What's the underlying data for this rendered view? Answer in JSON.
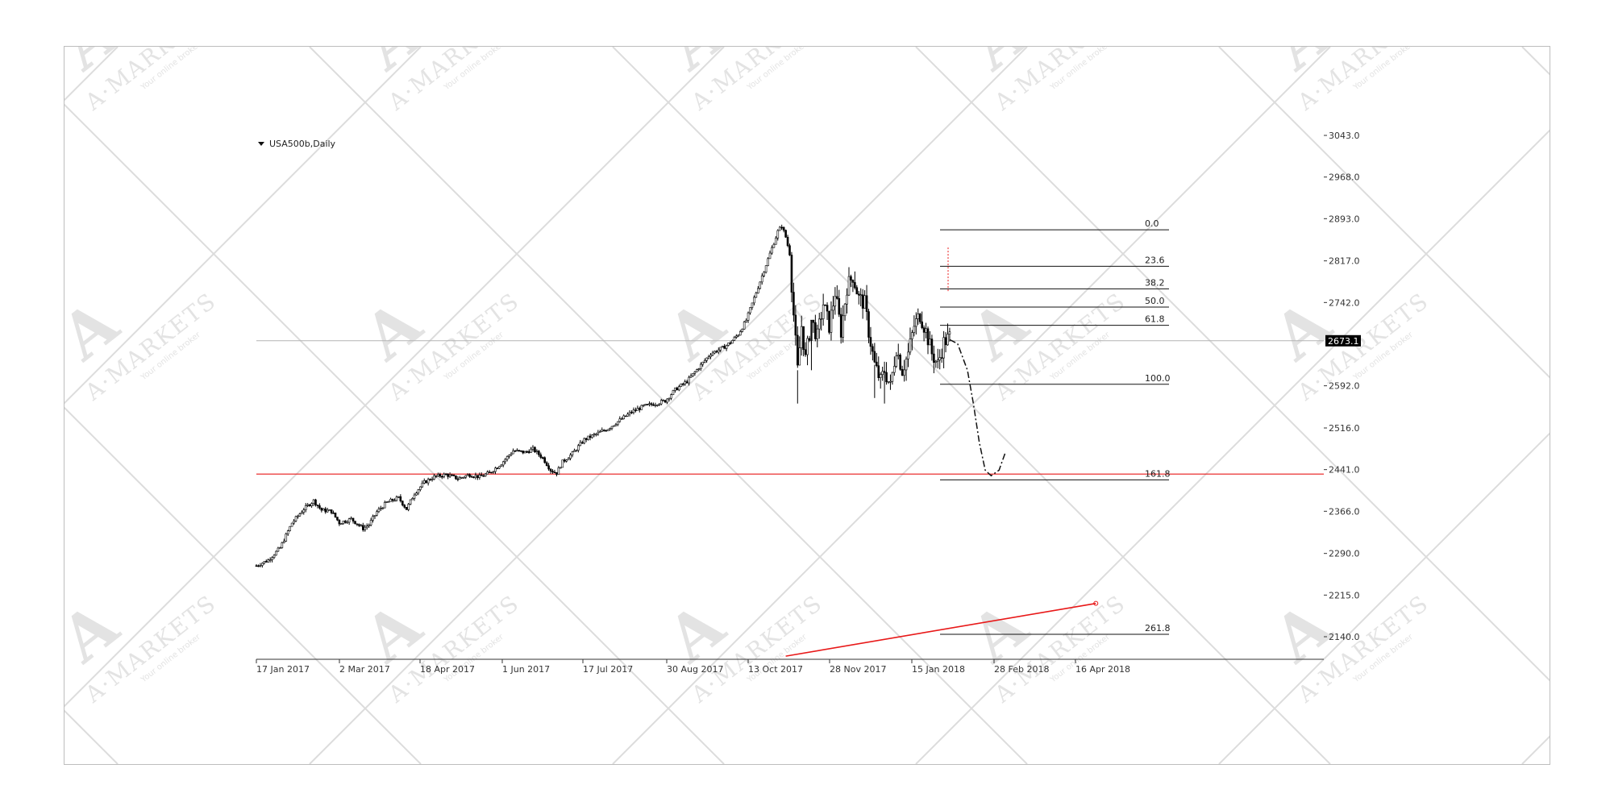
{
  "watermark": {
    "brand": "A·MARKETS",
    "tagline": "Your online broker",
    "logo": "A"
  },
  "chart_data": {
    "type": "candlestick",
    "title": "USA500b,Daily",
    "current_price": 2673.1,
    "ylim": [
      2105.0,
      3060.0
    ],
    "y_ticks": [
      "3043.0",
      "2968.0",
      "2893.0",
      "2817.0",
      "2742.0",
      "2673.1",
      "2592.0",
      "2516.0",
      "2441.0",
      "2366.0",
      "2290.0",
      "2215.0",
      "2140.0"
    ],
    "y_tick_values": [
      3043.0,
      2968.0,
      2893.0,
      2817.0,
      2742.0,
      2673.1,
      2592.0,
      2516.0,
      2441.0,
      2366.0,
      2290.0,
      2215.0,
      2140.0
    ],
    "x_ticks": [
      "17 Jan 2017",
      "2 Mar 2017",
      "18 Apr 2017",
      "1 Jun 2017",
      "17 Jul 2017",
      "30 Aug 2017",
      "13 Oct 2017",
      "28 Nov 2017",
      "15 Jan 2018",
      "28 Feb 2018",
      "16 Apr 2018"
    ],
    "price_path": [
      [
        0,
        2268
      ],
      [
        6,
        2278
      ],
      [
        12,
        2300
      ],
      [
        18,
        2345
      ],
      [
        24,
        2370
      ],
      [
        29,
        2385
      ],
      [
        33,
        2368
      ],
      [
        38,
        2366
      ],
      [
        42,
        2345
      ],
      [
        48,
        2352
      ],
      [
        54,
        2335
      ],
      [
        57,
        2342
      ],
      [
        61,
        2365
      ],
      [
        66,
        2382
      ],
      [
        72,
        2390
      ],
      [
        76,
        2370
      ],
      [
        80,
        2398
      ],
      [
        85,
        2418
      ],
      [
        90,
        2428
      ],
      [
        96,
        2432
      ],
      [
        102,
        2425
      ],
      [
        108,
        2432
      ],
      [
        113,
        2428
      ],
      [
        118,
        2435
      ],
      [
        124,
        2452
      ],
      [
        130,
        2475
      ],
      [
        136,
        2472
      ],
      [
        140,
        2478
      ],
      [
        145,
        2462
      ],
      [
        149,
        2440
      ],
      [
        152,
        2435
      ],
      [
        155,
        2455
      ],
      [
        160,
        2470
      ],
      [
        166,
        2495
      ],
      [
        172,
        2505
      ],
      [
        178,
        2515
      ],
      [
        184,
        2530
      ],
      [
        190,
        2545
      ],
      [
        196,
        2555
      ],
      [
        202,
        2560
      ],
      [
        207,
        2565
      ],
      [
        212,
        2585
      ],
      [
        218,
        2600
      ],
      [
        224,
        2625
      ],
      [
        230,
        2650
      ],
      [
        236,
        2660
      ],
      [
        240,
        2670
      ],
      [
        244,
        2685
      ],
      [
        248,
        2710
      ],
      [
        252,
        2750
      ],
      [
        256,
        2790
      ],
      [
        260,
        2830
      ],
      [
        264,
        2870
      ],
      [
        266,
        2880
      ],
      [
        268,
        2860
      ],
      [
        270,
        2830
      ],
      [
        272,
        2720
      ],
      [
        274,
        2620
      ],
      [
        276,
        2700
      ],
      [
        278,
        2640
      ],
      [
        281,
        2710
      ],
      [
        284,
        2680
      ],
      [
        287,
        2740
      ],
      [
        290,
        2700
      ],
      [
        293,
        2760
      ],
      [
        296,
        2690
      ],
      [
        299,
        2770
      ],
      [
        302,
        2790
      ],
      [
        305,
        2750
      ],
      [
        308,
        2740
      ],
      [
        310,
        2690
      ],
      [
        313,
        2630
      ],
      [
        316,
        2600
      ],
      [
        318,
        2620
      ],
      [
        321,
        2590
      ],
      [
        324,
        2660
      ],
      [
        327,
        2620
      ],
      [
        330,
        2650
      ],
      [
        333,
        2700
      ],
      [
        336,
        2720
      ],
      [
        339,
        2690
      ],
      [
        342,
        2650
      ],
      [
        345,
        2630
      ],
      [
        348,
        2670
      ],
      [
        351,
        2680
      ]
    ],
    "fibonacci_levels": [
      {
        "label": "0.0",
        "value": 2872.9
      },
      {
        "label": "23.6",
        "value": 2807.2
      },
      {
        "label": "38.2",
        "value": 2766.6
      },
      {
        "label": "50.0",
        "value": 2733.7
      },
      {
        "label": "61.8",
        "value": 2700.9
      },
      {
        "label": "100.0",
        "value": 2594.7
      },
      {
        "label": "161.8",
        "value": 2422.6
      },
      {
        "label": "261.8",
        "value": 2144.4
      }
    ],
    "horizontal_line": {
      "value": 2433.0,
      "color": "#e81818"
    },
    "current_line_color": "#b3b3b3",
    "trend_line": {
      "from": [
        268,
        2105
      ],
      "to": [
        425,
        2200
      ],
      "color": "#e81818"
    },
    "projection": [
      [
        351,
        2675
      ],
      [
        355,
        2668
      ],
      [
        360,
        2620
      ],
      [
        363,
        2560
      ],
      [
        366,
        2490
      ],
      [
        369,
        2440
      ],
      [
        372,
        2430
      ],
      [
        376,
        2440
      ],
      [
        379,
        2470
      ]
    ],
    "candle_color": "#000000"
  }
}
